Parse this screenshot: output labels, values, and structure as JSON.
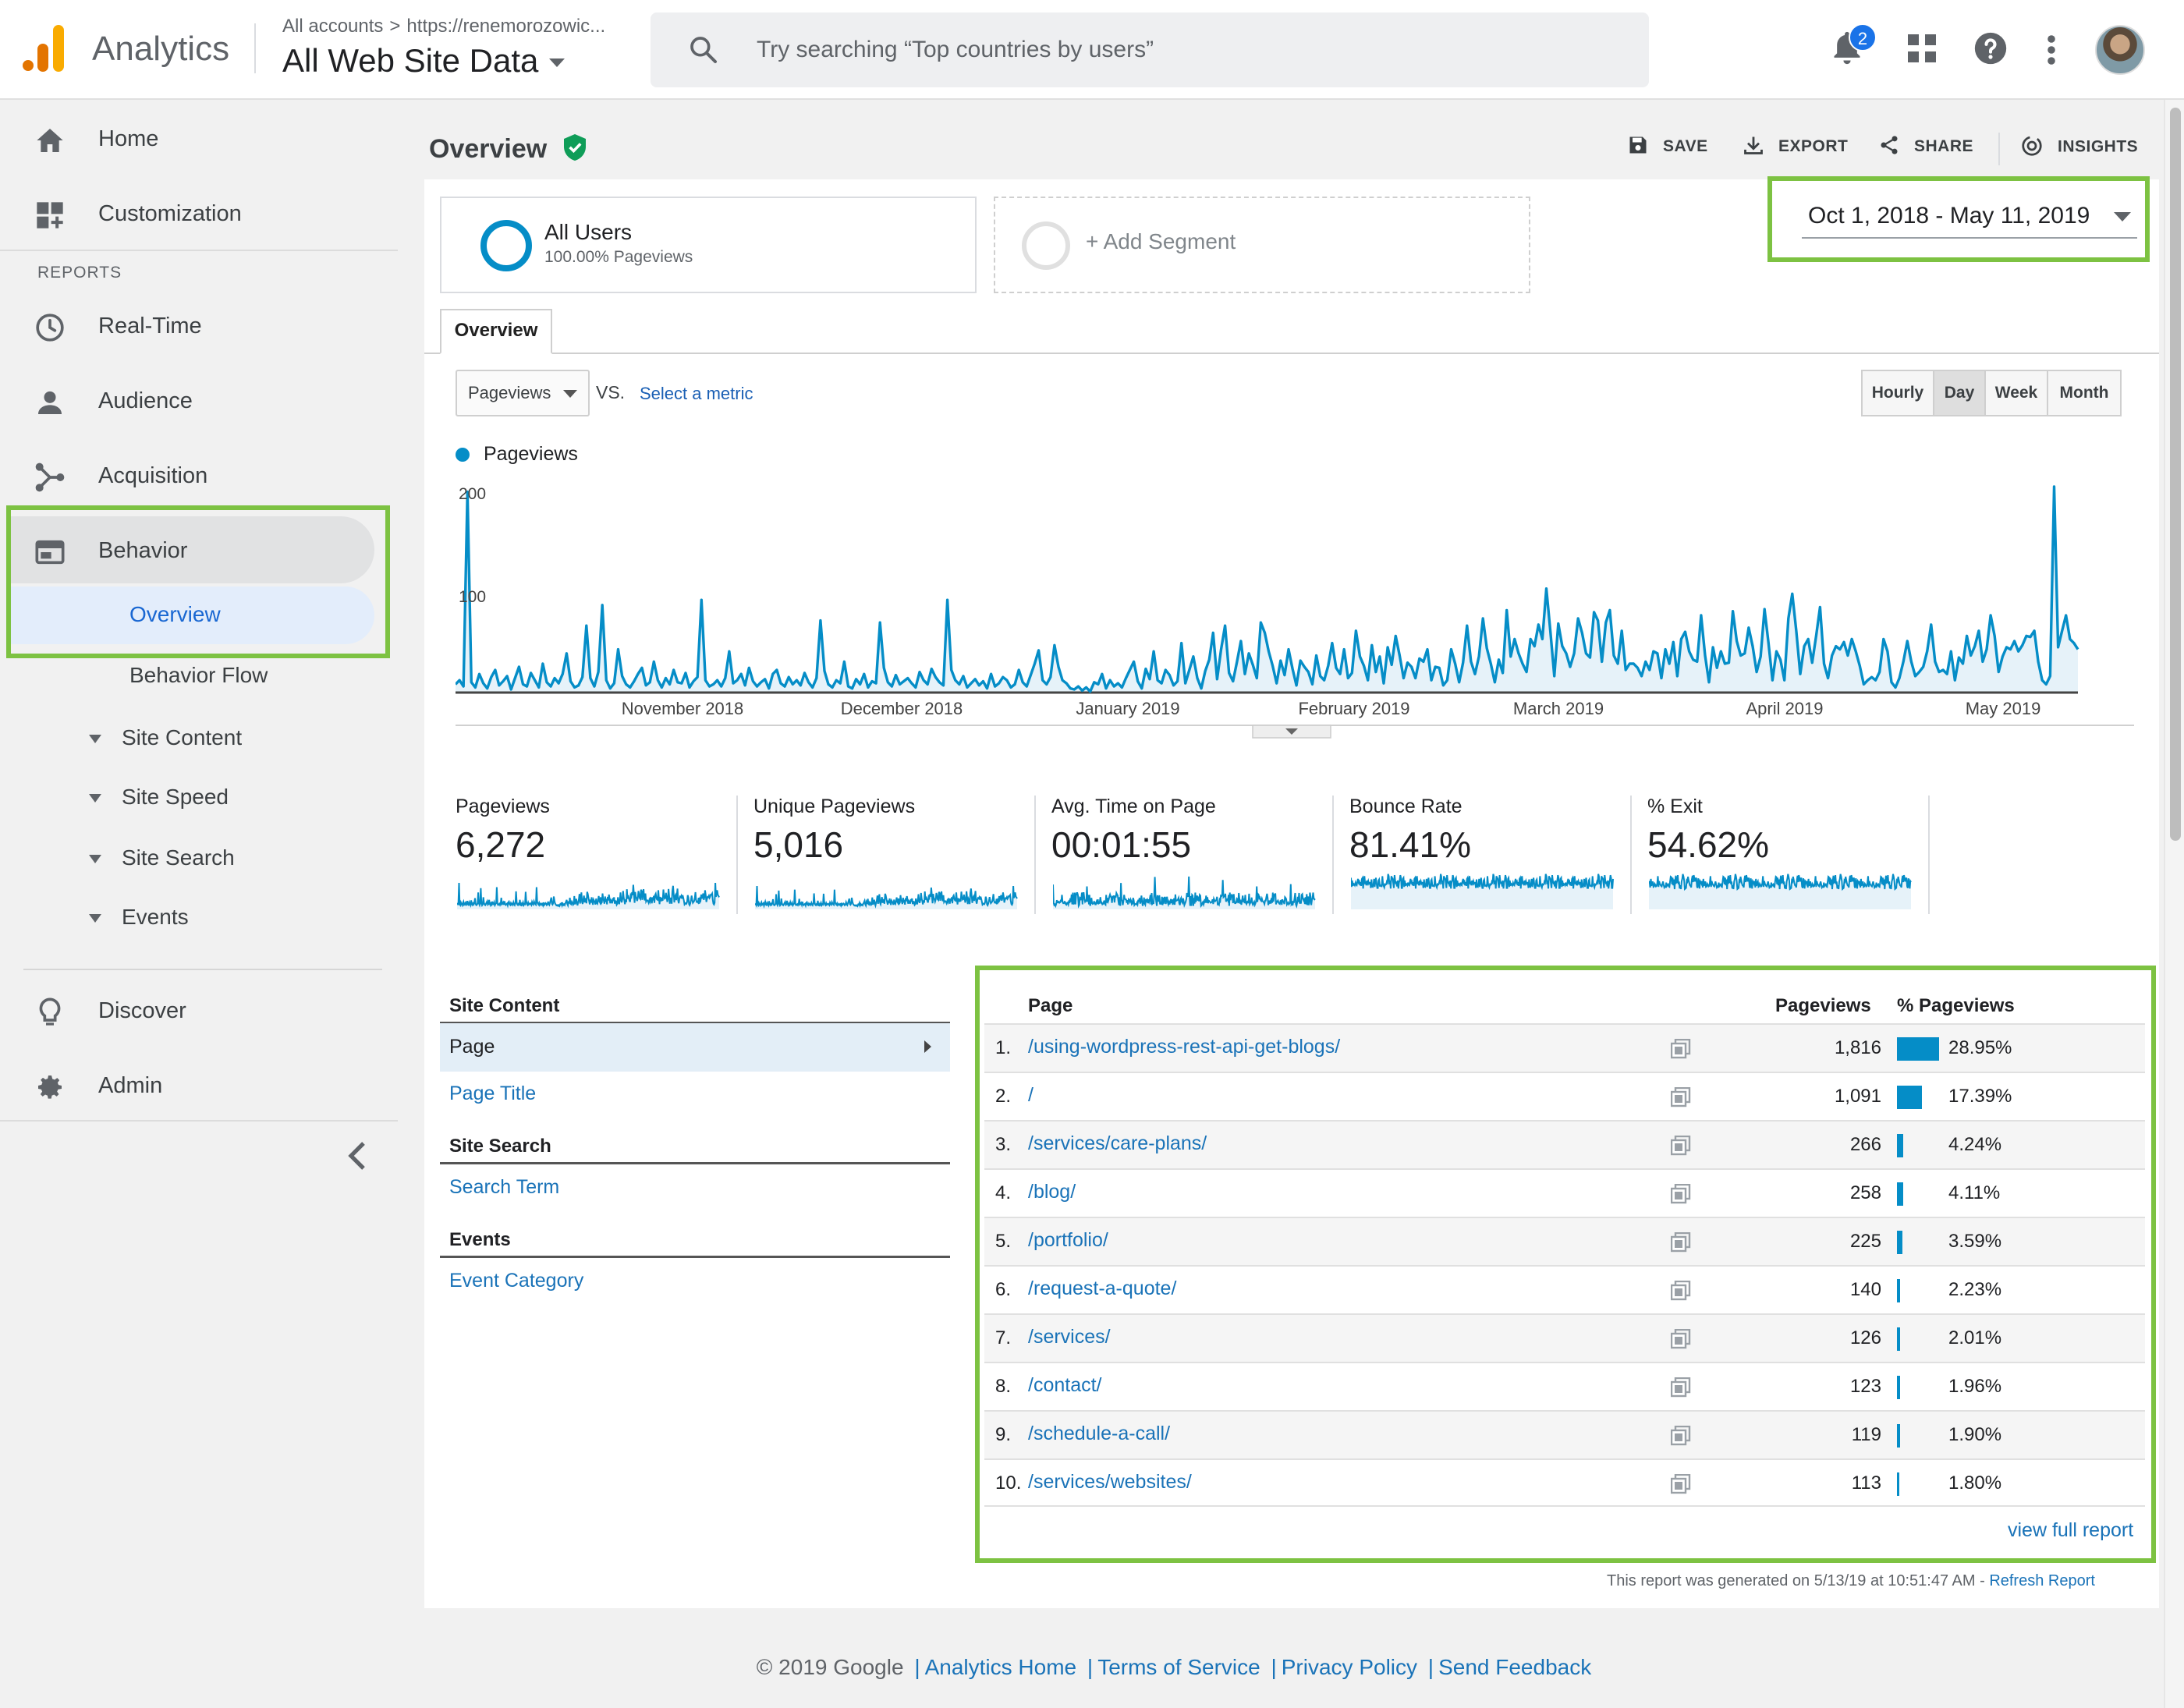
{
  "header": {
    "app_name": "Analytics",
    "breadcrumb_account": "All accounts",
    "breadcrumb_separator": ">",
    "breadcrumb_property": "https://renemorozowic...",
    "view_name": "All Web Site Data",
    "search_placeholder": "Try searching “Top countries by users”",
    "notification_count": "2",
    "icons": [
      "search-icon",
      "bell-icon",
      "apps-grid-icon",
      "help-icon",
      "more-vert-icon",
      "avatar"
    ]
  },
  "sidebar": {
    "home": "Home",
    "customization": "Customization",
    "reports_label": "REPORTS",
    "realtime": "Real-Time",
    "audience": "Audience",
    "acquisition": "Acquisition",
    "behavior": "Behavior",
    "behavior_sub": {
      "overview": "Overview",
      "behavior_flow": "Behavior Flow",
      "site_content": "Site Content",
      "site_speed": "Site Speed",
      "site_search": "Site Search",
      "events": "Events"
    },
    "discover": "Discover",
    "admin": "Admin"
  },
  "page": {
    "title": "Overview",
    "actions": {
      "save": "SAVE",
      "export": "EXPORT",
      "share": "SHARE",
      "insights": "INSIGHTS"
    },
    "segments": {
      "all_users_title": "All Users",
      "all_users_sub": "100.00% Pageviews",
      "add_segment": "+ Add Segment"
    },
    "date_range": "Oct 1, 2018 - May 11, 2019",
    "tab": "Overview",
    "metric_select": "Pageviews",
    "vs_label": "VS.",
    "select_metric": "Select a metric",
    "granularity": [
      "Hourly",
      "Day",
      "Week",
      "Month"
    ],
    "granularity_selected": "Day"
  },
  "chart_data": {
    "type": "line",
    "series": [
      {
        "name": "Pageviews",
        "color": "#058dc7",
        "values": [
          8,
          12,
          6,
          195,
          10,
          5,
          18,
          9,
          4,
          15,
          22,
          7,
          11,
          16,
          3,
          14,
          25,
          8,
          6,
          19,
          12,
          5,
          28,
          10,
          6,
          14,
          9,
          18,
          38,
          11,
          5,
          7,
          15,
          65,
          14,
          6,
          20,
          85,
          12,
          4,
          9,
          42,
          16,
          8,
          5,
          11,
          18,
          24,
          7,
          10,
          30,
          12,
          5,
          14,
          8,
          22,
          10,
          9,
          19,
          5,
          11,
          15,
          90,
          12,
          6,
          8,
          12,
          6,
          14,
          40,
          9,
          12,
          18,
          7,
          24,
          11,
          6,
          10,
          13,
          4,
          18,
          22,
          9,
          6,
          15,
          8,
          12,
          7,
          19,
          10,
          5,
          14,
          70,
          21,
          8,
          5,
          12,
          9,
          30,
          6,
          4,
          13,
          8,
          18,
          5,
          11,
          9,
          68,
          24,
          10,
          6,
          17,
          8,
          11,
          14,
          9,
          5,
          20,
          12,
          8,
          23,
          15,
          10,
          7,
          90,
          22,
          12,
          8,
          16,
          5,
          9,
          13,
          7,
          11,
          4,
          18,
          6,
          9,
          15,
          12,
          5,
          8,
          22,
          10,
          6,
          17,
          28,
          41,
          12,
          8,
          15,
          46,
          25,
          12,
          9,
          4,
          3,
          6,
          2,
          5,
          1,
          10,
          8,
          18,
          4,
          12,
          6,
          9,
          5,
          14,
          22,
          30,
          11,
          4,
          23,
          13,
          40,
          12,
          9,
          22,
          17,
          7,
          11,
          48,
          9,
          22,
          35,
          14,
          4,
          21,
          32,
          58,
          13,
          42,
          65,
          19,
          11,
          30,
          50,
          18,
          38,
          27,
          14,
          68,
          58,
          40,
          26,
          9,
          31,
          17,
          42,
          23,
          7,
          31,
          25,
          20,
          8,
          36,
          16,
          12,
          26,
          48,
          24,
          18,
          42,
          14,
          19,
          60,
          35,
          26,
          12,
          46,
          20,
          35,
          9,
          44,
          27,
          55,
          36,
          14,
          29,
          25,
          14,
          33,
          30,
          42,
          12,
          25,
          24,
          7,
          12,
          42,
          28,
          10,
          29,
          65,
          30,
          18,
          35,
          72,
          43,
          28,
          10,
          32,
          19,
          80,
          35,
          52,
          38,
          28,
          20,
          52,
          45,
          66,
          52,
          101,
          60,
          16,
          67,
          45,
          38,
          25,
          38,
          72,
          58,
          38,
          34,
          78,
          70,
          30,
          68,
          80,
          36,
          28,
          60,
          22,
          28,
          28,
          24,
          16,
          30,
          22,
          40,
          38,
          14,
          42,
          28,
          49,
          16,
          52,
          59,
          40,
          32,
          30,
          75,
          36,
          10,
          44,
          24,
          40,
          28,
          29,
          79,
          50,
          36,
          38,
          63,
          45,
          20,
          35,
          81,
          48,
          12,
          40,
          32,
          12,
          72,
          96,
          60,
          18,
          45,
          52,
          29,
          55,
          83,
          28,
          14,
          36,
          45,
          42,
          49,
          36,
          52,
          40,
          26,
          8,
          12,
          15,
          12,
          20,
          52,
          40,
          10,
          5,
          14,
          30,
          50,
          30,
          16,
          20,
          25,
          40,
          66,
          30,
          20,
          22,
          18,
          40,
          12,
          34,
          28,
          55,
          36,
          45,
          60,
          30,
          42,
          75,
          55,
          20,
          35,
          44,
          42,
          50,
          40,
          46,
          55,
          54,
          60,
          30,
          12,
          8,
          16,
          205,
          44,
          60,
          75,
          52,
          48,
          42
        ],
        "note_max_visible": "200"
      }
    ],
    "x_tick_labels": [
      "November 2018",
      "December 2018",
      "January 2019",
      "February 2019",
      "March 2019",
      "April 2019",
      "May 2019"
    ],
    "y_tick_labels": [
      "200",
      "100"
    ],
    "ylim": [
      0,
      200
    ],
    "grid": false,
    "legend": "top-left"
  },
  "scorecards": [
    {
      "label": "Pageviews",
      "value": "6,272"
    },
    {
      "label": "Unique Pageviews",
      "value": "5,016"
    },
    {
      "label": "Avg. Time on Page",
      "value": "00:01:55"
    },
    {
      "label": "Bounce Rate",
      "value": "81.41%"
    },
    {
      "label": "% Exit",
      "value": "54.62%"
    }
  ],
  "report_nav": {
    "site_content_head": "Site Content",
    "page": "Page",
    "page_title": "Page Title",
    "site_search_head": "Site Search",
    "search_term": "Search Term",
    "events_head": "Events",
    "event_category": "Event Category"
  },
  "table": {
    "headers": {
      "page": "Page",
      "pageviews": "Pageviews",
      "pct": "% Pageviews"
    },
    "rows": [
      {
        "idx": "1.",
        "page": "/using-wordpress-rest-api-get-blogs/",
        "pageviews": "1,816",
        "pct": "28.95%",
        "share": 28.95
      },
      {
        "idx": "2.",
        "page": "/",
        "pageviews": "1,091",
        "pct": "17.39%",
        "share": 17.39
      },
      {
        "idx": "3.",
        "page": "/services/care-plans/",
        "pageviews": "266",
        "pct": "4.24%",
        "share": 4.24
      },
      {
        "idx": "4.",
        "page": "/blog/",
        "pageviews": "258",
        "pct": "4.11%",
        "share": 4.11
      },
      {
        "idx": "5.",
        "page": "/portfolio/",
        "pageviews": "225",
        "pct": "3.59%",
        "share": 3.59
      },
      {
        "idx": "6.",
        "page": "/request-a-quote/",
        "pageviews": "140",
        "pct": "2.23%",
        "share": 2.23
      },
      {
        "idx": "7.",
        "page": "/services/",
        "pageviews": "126",
        "pct": "2.01%",
        "share": 2.01
      },
      {
        "idx": "8.",
        "page": "/contact/",
        "pageviews": "123",
        "pct": "1.96%",
        "share": 1.96
      },
      {
        "idx": "9.",
        "page": "/schedule-a-call/",
        "pageviews": "119",
        "pct": "1.90%",
        "share": 1.9
      },
      {
        "idx": "10.",
        "page": "/services/websites/",
        "pageviews": "113",
        "pct": "1.80%",
        "share": 1.8
      }
    ],
    "view_full_report": "view full report"
  },
  "generated": {
    "text": "This report was generated on 5/13/19 at 10:51:47 AM - ",
    "refresh": "Refresh Report"
  },
  "footer": {
    "copyright": "© 2019 Google",
    "links": [
      "Analytics Home",
      "Terms of Service",
      "Privacy Policy",
      "Send Feedback"
    ],
    "separator": "|"
  },
  "colors": {
    "accent": "#058dc7",
    "highlight_box": "#7dc242",
    "link": "#1a73b8"
  }
}
